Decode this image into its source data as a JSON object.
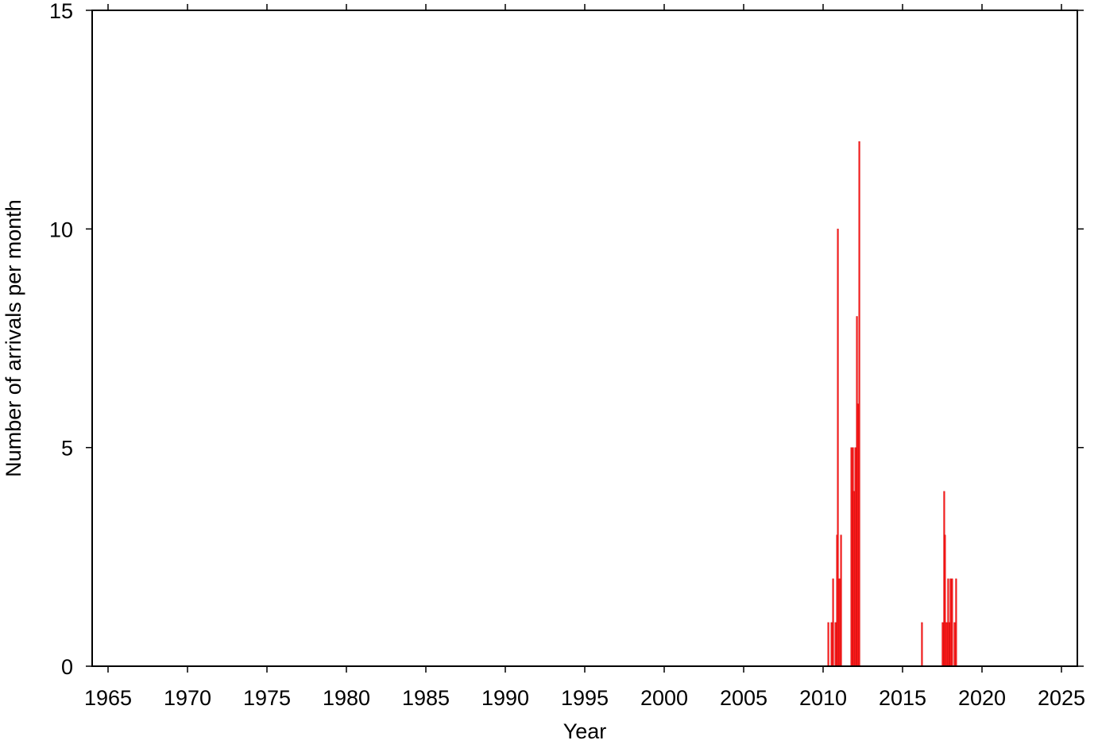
{
  "chart_data": {
    "type": "bar",
    "x_label": "Year",
    "y_label": "Number of arrivals per month",
    "color": "#ff1a1a",
    "x": [
      2010.33,
      2010.53,
      2010.63,
      2010.78,
      2010.88,
      2010.93,
      2011.03,
      2011.13,
      2011.78,
      2011.88,
      2011.93,
      2012.03,
      2012.13,
      2012.18,
      2012.28,
      2016.22,
      2017.52,
      2017.62,
      2017.67,
      2017.77,
      2017.87,
      2017.97,
      2018.02,
      2018.12,
      2018.27,
      2018.37
    ],
    "values": [
      1,
      1,
      2,
      1,
      3,
      10,
      2,
      3,
      5,
      5,
      4,
      5,
      8,
      6,
      12,
      1,
      1,
      4,
      3,
      1,
      2,
      1,
      2,
      2,
      1,
      2
    ],
    "xlim": [
      1964,
      2026
    ],
    "xticks": [
      1965,
      1970,
      1975,
      1980,
      1985,
      1990,
      1995,
      2000,
      2005,
      2010,
      2015,
      2020,
      2025
    ],
    "ylim": [
      0,
      15
    ],
    "yticks": [
      0,
      5,
      10,
      15
    ]
  }
}
